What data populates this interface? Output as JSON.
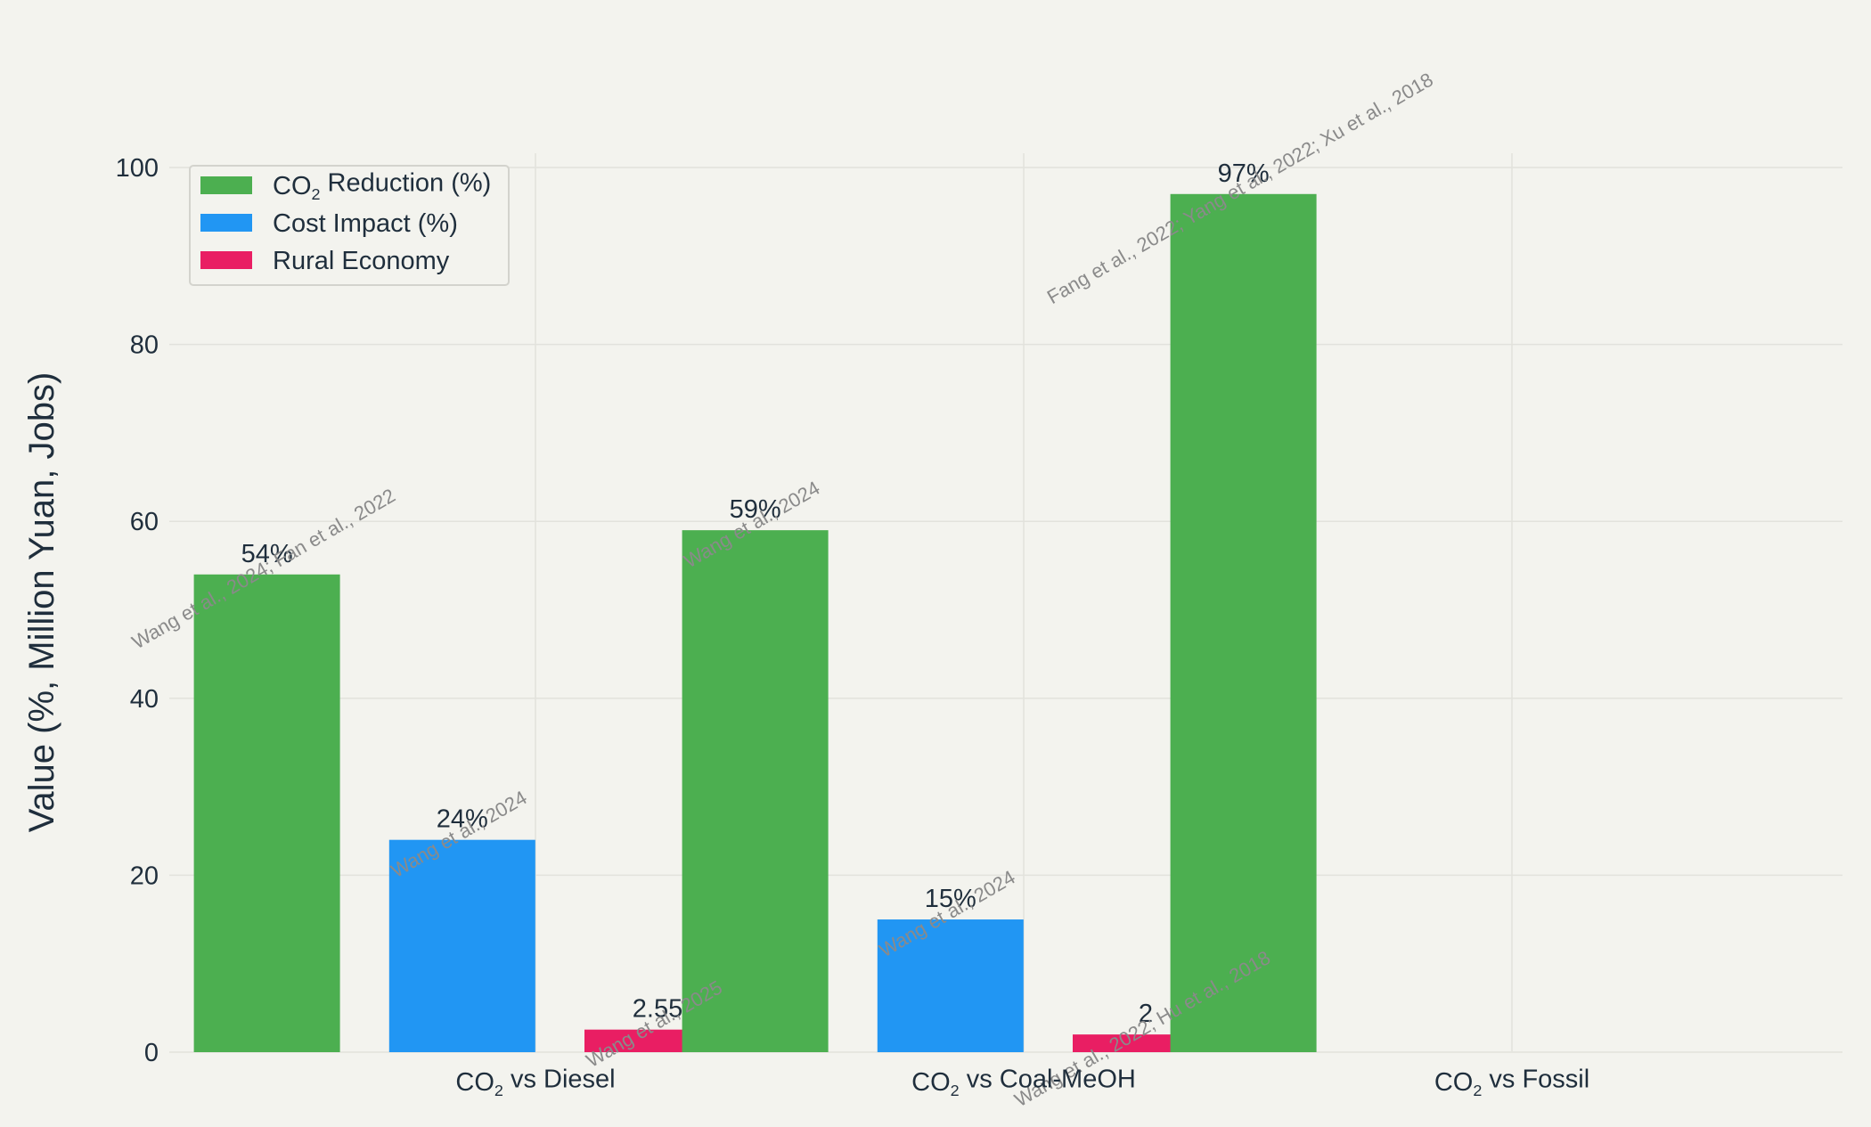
{
  "chart_data": {
    "type": "bar",
    "title": "",
    "ylabel": "Value (%, Million Yuan, Jobs)",
    "xlabel": "",
    "ylim": [
      0,
      100
    ],
    "yticks": [
      0,
      20,
      40,
      60,
      80,
      100
    ],
    "grid": true,
    "legend_position": "top-left",
    "colors": {
      "background": "#f3f3ee",
      "grid": "#e2e2dc",
      "text": "#1f2e3c",
      "annotation": "#8a8a8a"
    },
    "categories": [
      {
        "prefix": "CO",
        "sub": "2",
        "suffix": " vs Diesel"
      },
      {
        "prefix": "CO",
        "sub": "2",
        "suffix": " vs Coal-MeOH"
      },
      {
        "prefix": "CO",
        "sub": "2",
        "suffix": " vs Fossil"
      }
    ],
    "bars": [
      {
        "series": "co2",
        "x": -0.55,
        "value": 54,
        "label": "54%",
        "note": "Wang et al., 2024; Fan et al., 2022"
      },
      {
        "series": "cost",
        "x": -0.15,
        "value": 24,
        "label": "24%",
        "note": "Wang et al., 2024"
      },
      {
        "series": "rural",
        "x": 0.25,
        "value": 2.55,
        "label": "2.55",
        "note": "Wang et al., 2025"
      },
      {
        "series": "co2",
        "x": 0.45,
        "value": 59,
        "label": "59%",
        "note": "Wang et al., 2024"
      },
      {
        "series": "cost",
        "x": 0.85,
        "value": 15,
        "label": "15%",
        "note": "Wang et al., 2024"
      },
      {
        "series": "rural",
        "x": 1.25,
        "value": 2,
        "label": "2",
        "note": "Wang et al., 2022; Hu et al., 2018"
      },
      {
        "series": "co2",
        "x": 1.45,
        "value": 97,
        "label": "97%",
        "note": "Fang et al., 2022; Yang et al., 2022; Xu et al., 2018"
      }
    ],
    "series": [
      {
        "key": "co2",
        "color": "#4caf50",
        "name_prefix": "CO",
        "name_sub": "2",
        "name_suffix": " Reduction (%)"
      },
      {
        "key": "cost",
        "color": "#2196f3",
        "name_prefix": "Cost Impact (%)",
        "name_sub": "",
        "name_suffix": ""
      },
      {
        "key": "rural",
        "color": "#e91e63",
        "name_prefix": "Rural Economy",
        "name_sub": "",
        "name_suffix": ""
      }
    ]
  }
}
